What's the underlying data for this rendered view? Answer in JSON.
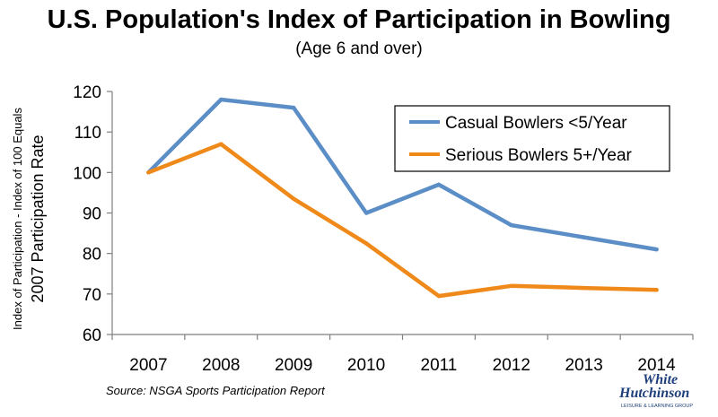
{
  "title": "U.S. Population's Index of Participation in Bowling",
  "subtitle": "(Age 6 and over)",
  "source": "Source: NSGA Sports Participation Report",
  "logo": {
    "line1": "White",
    "line2": "Hutchinson",
    "tagline": "LEISURE & LEARNING GROUP"
  },
  "colors": {
    "casual": "#5b8ec6",
    "serious": "#ef8a1a",
    "axis": "#7f7f7f",
    "logo": "#1e3f7a"
  },
  "chart_data": {
    "type": "line",
    "title": "U.S. Population's Index of Participation in Bowling",
    "subtitle": "(Age 6 and over)",
    "xlabel": "",
    "ylabel_line1": "Index of Participation - Index of 100  Equals",
    "ylabel_line2": "2007 Participation Rate",
    "categories": [
      "2007",
      "2008",
      "2009",
      "2010",
      "2011",
      "2012",
      "2013",
      "2014"
    ],
    "ylim": [
      60,
      120
    ],
    "yticks": [
      60,
      70,
      80,
      90,
      100,
      110,
      120
    ],
    "grid": false,
    "legend_position": "top-right",
    "series": [
      {
        "name": "Casual Bowlers <5/Year",
        "values": [
          100,
          118,
          116,
          90,
          97,
          87,
          84,
          81
        ]
      },
      {
        "name": "Serious Bowlers 5+/Year",
        "values": [
          100,
          107,
          93.5,
          82.5,
          69.5,
          72,
          71.5,
          71
        ]
      }
    ]
  }
}
